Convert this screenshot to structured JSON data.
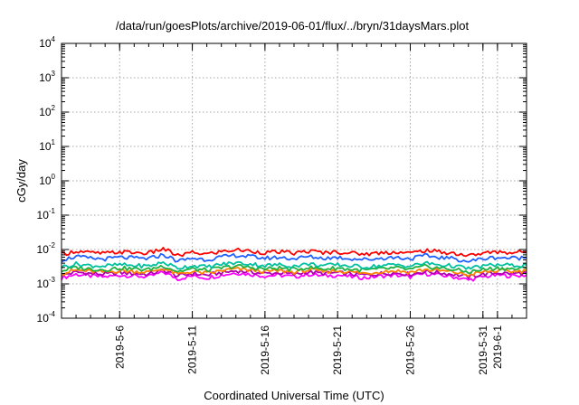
{
  "chart_data": {
    "type": "line",
    "title": "/data/run/goesPlots/archive/2019-06-01/flux/../bryn/31daysMars.plot",
    "xlabel": "Coordinated Universal Time (UTC)",
    "ylabel": "cGy/day",
    "yscale": "log",
    "ylim": [
      0.0001,
      10000
    ],
    "yticks": [
      {
        "base": "10",
        "exp": "-4",
        "value": 0.0001
      },
      {
        "base": "10",
        "exp": "-3",
        "value": 0.001
      },
      {
        "base": "10",
        "exp": "-2",
        "value": 0.01
      },
      {
        "base": "10",
        "exp": "-1",
        "value": 0.1
      },
      {
        "base": "10",
        "exp": "0",
        "value": 1
      },
      {
        "base": "10",
        "exp": "1",
        "value": 10
      },
      {
        "base": "10",
        "exp": "2",
        "value": 100
      },
      {
        "base": "10",
        "exp": "3",
        "value": 1000
      },
      {
        "base": "10",
        "exp": "4",
        "value": 10000
      }
    ],
    "xlim": [
      "2019-05-02T00:00",
      "2019-06-03T00:00"
    ],
    "xticks": [
      "2019-5-6",
      "2019-5-11",
      "2019-5-16",
      "2019-5-21",
      "2019-5-26",
      "2019-5-31",
      "2019-6-1"
    ],
    "xtick_dates": [
      "2019-05-06",
      "2019-05-11",
      "2019-05-16",
      "2019-05-21",
      "2019-05-26",
      "2019-05-31",
      "2019-06-01"
    ],
    "grid": true,
    "x": [
      "2019-05-02",
      "2019-05-03",
      "2019-05-04",
      "2019-05-05",
      "2019-05-06",
      "2019-05-07",
      "2019-05-08",
      "2019-05-09",
      "2019-05-10",
      "2019-05-11",
      "2019-05-12",
      "2019-05-13",
      "2019-05-14",
      "2019-05-15",
      "2019-05-16",
      "2019-05-17",
      "2019-05-18",
      "2019-05-19",
      "2019-05-20",
      "2019-05-21",
      "2019-05-22",
      "2019-05-23",
      "2019-05-24",
      "2019-05-25",
      "2019-05-26",
      "2019-05-27",
      "2019-05-28",
      "2019-05-29",
      "2019-05-30",
      "2019-05-31",
      "2019-06-01",
      "2019-06-02",
      "2019-06-03"
    ],
    "series": [
      {
        "color": "#ff00ff",
        "values": [
          0.0015,
          0.0019,
          0.0017,
          0.0016,
          0.0018,
          0.0017,
          0.0016,
          0.0022,
          0.0014,
          0.0017,
          0.0015,
          0.0018,
          0.0021,
          0.0019,
          0.0017,
          0.0018,
          0.0016,
          0.0019,
          0.0017,
          0.0018,
          0.0016,
          0.0015,
          0.0017,
          0.0018,
          0.0016,
          0.002,
          0.0018,
          0.0016,
          0.0013,
          0.0016,
          0.0018,
          0.0017,
          0.0018
        ]
      },
      {
        "color": "#b000b0",
        "values": [
          0.0018,
          0.0022,
          0.002,
          0.0019,
          0.0021,
          0.002,
          0.0019,
          0.0025,
          0.0017,
          0.002,
          0.0018,
          0.0021,
          0.0024,
          0.0022,
          0.002,
          0.0021,
          0.0019,
          0.0022,
          0.002,
          0.0021,
          0.0019,
          0.0018,
          0.002,
          0.0021,
          0.0019,
          0.0023,
          0.0021,
          0.0019,
          0.0016,
          0.0019,
          0.0021,
          0.002,
          0.0021
        ]
      },
      {
        "color": "#ff8000",
        "values": [
          0.002,
          0.0025,
          0.0023,
          0.0022,
          0.0024,
          0.0023,
          0.0022,
          0.0028,
          0.0019,
          0.0023,
          0.002,
          0.0024,
          0.0027,
          0.0025,
          0.0023,
          0.0024,
          0.0022,
          0.0025,
          0.0023,
          0.0024,
          0.0022,
          0.002,
          0.0023,
          0.0024,
          0.0022,
          0.0026,
          0.0024,
          0.0022,
          0.0018,
          0.0022,
          0.0024,
          0.0023,
          0.0024
        ]
      },
      {
        "color": "#20b040",
        "values": [
          0.0024,
          0.003,
          0.0027,
          0.0026,
          0.0029,
          0.0027,
          0.0026,
          0.0034,
          0.0023,
          0.0027,
          0.0025,
          0.0029,
          0.0033,
          0.003,
          0.0027,
          0.0029,
          0.0026,
          0.003,
          0.0027,
          0.0029,
          0.0026,
          0.0025,
          0.0027,
          0.0029,
          0.0026,
          0.0032,
          0.0029,
          0.0026,
          0.0022,
          0.0026,
          0.0029,
          0.0027,
          0.0028
        ]
      },
      {
        "color": "#00c0a0",
        "values": [
          0.0031,
          0.0038,
          0.0034,
          0.0033,
          0.0036,
          0.0034,
          0.0033,
          0.0042,
          0.0029,
          0.0034,
          0.0031,
          0.0037,
          0.0041,
          0.0038,
          0.0034,
          0.0036,
          0.0033,
          0.0038,
          0.0034,
          0.0036,
          0.0033,
          0.0031,
          0.0034,
          0.0036,
          0.0033,
          0.004,
          0.0036,
          0.0033,
          0.0028,
          0.0033,
          0.0036,
          0.0034,
          0.0035
        ]
      },
      {
        "color": "#2060ff",
        "values": [
          0.005,
          0.0062,
          0.0055,
          0.0053,
          0.0059,
          0.0056,
          0.0054,
          0.0071,
          0.0046,
          0.0056,
          0.0051,
          0.006,
          0.0068,
          0.0062,
          0.0056,
          0.0059,
          0.0054,
          0.0062,
          0.0056,
          0.0059,
          0.0054,
          0.0051,
          0.0056,
          0.0059,
          0.0054,
          0.0066,
          0.0059,
          0.0054,
          0.0045,
          0.0054,
          0.0059,
          0.0056,
          0.0058
        ]
      },
      {
        "color": "#ff0000",
        "values": [
          0.0072,
          0.009,
          0.008,
          0.0077,
          0.0085,
          0.0081,
          0.0078,
          0.0105,
          0.0066,
          0.0081,
          0.0074,
          0.0087,
          0.0098,
          0.009,
          0.0081,
          0.0085,
          0.0078,
          0.009,
          0.0081,
          0.0085,
          0.0078,
          0.0074,
          0.0081,
          0.0085,
          0.0078,
          0.0095,
          0.0085,
          0.0078,
          0.0066,
          0.0078,
          0.0085,
          0.0081,
          0.0088
        ]
      }
    ]
  }
}
